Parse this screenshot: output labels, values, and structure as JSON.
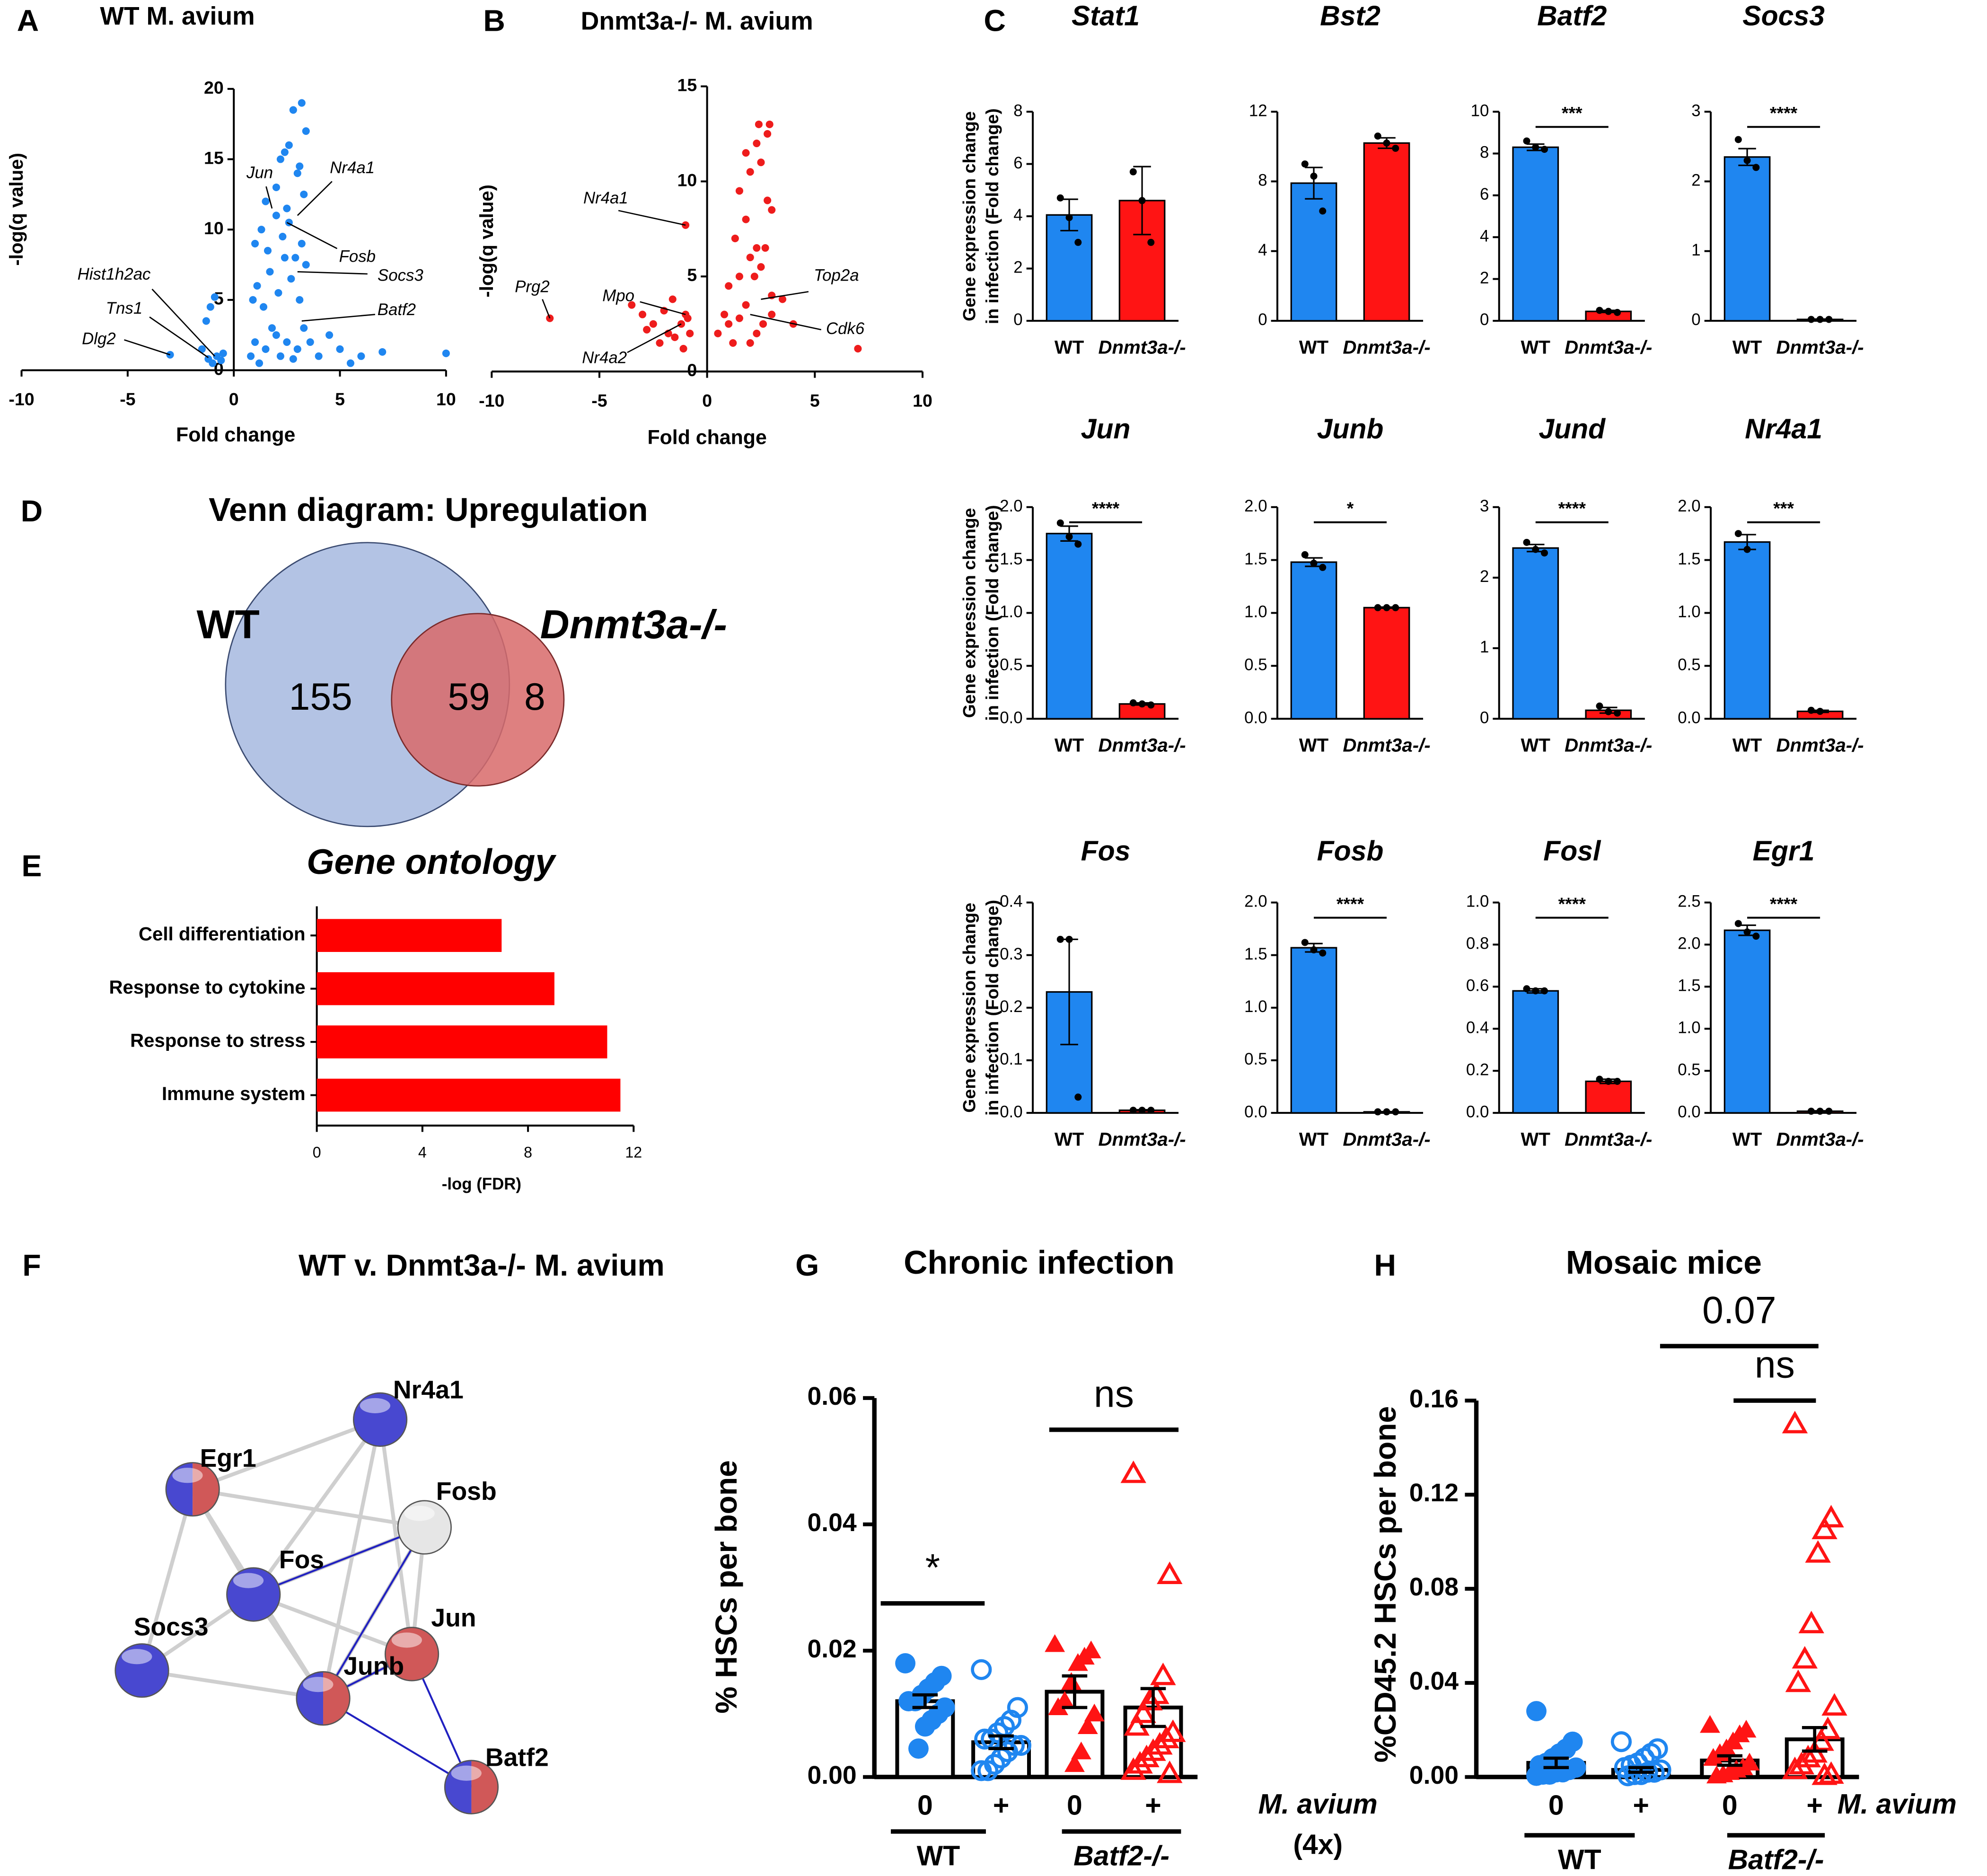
{
  "chart_data": [
    {
      "type": "scatter",
      "panel": "A",
      "title": "WT M. avium",
      "xlabel": "Fold change",
      "ylabel": "-log(q value)",
      "color": "#1f86f0",
      "xlim": [
        -10,
        10
      ],
      "xticks": [
        -10,
        -5,
        0,
        5,
        10
      ],
      "ylim": [
        0,
        20
      ],
      "yticks": [
        0,
        5,
        10,
        15,
        20
      ],
      "x": [
        -3,
        -1.5,
        -1.2,
        -1,
        -0.8,
        -0.6,
        -0.5,
        -1.1,
        -0.9,
        -1.3,
        0.8,
        1,
        1.2,
        1.5,
        1.8,
        2,
        2.2,
        2.5,
        2.8,
        3,
        3.3,
        3.6,
        4,
        4.5,
        5,
        5.5,
        6,
        7,
        10,
        0.9,
        1.1,
        1.4,
        1.7,
        2.1,
        2.4,
        2.7,
        3.1,
        3.4,
        1,
        1.3,
        1.6,
        2,
        2.3,
        2.6,
        2.9,
        3.2,
        1.5,
        2,
        2.5,
        3,
        3.3,
        2.2,
        2.6,
        3.1,
        3.4,
        2.8,
        3.2,
        2.4
      ],
      "values": [
        1.1,
        1.5,
        0.8,
        0.5,
        1,
        0.7,
        1.2,
        4.5,
        5.2,
        3.5,
        1,
        2,
        0.5,
        1.5,
        3,
        2.5,
        1,
        2,
        0.8,
        1.5,
        3,
        2,
        1,
        2.5,
        1.5,
        0.5,
        1,
        1.3,
        1.2,
        5,
        6,
        4.5,
        7,
        5.5,
        8,
        6.5,
        5,
        7.5,
        9,
        10,
        8.5,
        11,
        9.5,
        10.5,
        8,
        9,
        12,
        13,
        11.5,
        14,
        12.5,
        15,
        16,
        14.5,
        17,
        18.5,
        19,
        15.5
      ],
      "annotations": [
        {
          "text": "Jun",
          "x": 1.8,
          "y": 11.5
        },
        {
          "text": "Nr4a1",
          "x": 3,
          "y": 11
        },
        {
          "text": "Fosb",
          "x": 2.5,
          "y": 10.5
        },
        {
          "text": "Socs3",
          "x": 3,
          "y": 7
        },
        {
          "text": "Batf2",
          "x": 3.2,
          "y": 3.5
        },
        {
          "text": "Hist1h2ac",
          "x": -0.9,
          "y": 1
        },
        {
          "text": "Tns1",
          "x": -1.2,
          "y": 0.9
        },
        {
          "text": "Dlg2",
          "x": -3,
          "y": 1.1
        }
      ]
    },
    {
      "type": "scatter",
      "panel": "B",
      "title": "Dnmt3a-/- M. avium",
      "xlabel": "Fold change",
      "ylabel": "-log(q value)",
      "color": "#ee1c1c",
      "xlim": [
        -10,
        10
      ],
      "xticks": [
        -10,
        -5,
        0,
        5,
        10
      ],
      "ylim": [
        0,
        15
      ],
      "yticks": [
        0,
        5,
        10,
        15
      ],
      "x": [
        -7.3,
        -3.5,
        -3,
        -2.5,
        -2,
        -1.8,
        -1.5,
        -1.2,
        -1,
        -0.8,
        -2.8,
        -2.2,
        -1.6,
        -1.1,
        -0.9,
        0.5,
        0.8,
        1,
        1.2,
        1.5,
        1.8,
        2,
        2.3,
        2.6,
        3,
        3.5,
        4,
        7,
        1,
        1.5,
        2,
        2.5,
        3,
        1.3,
        1.8,
        2.3,
        2.8,
        1.5,
        2,
        2.5,
        3,
        1.8,
        2.3,
        2.8,
        2.4,
        2.9,
        2.2,
        2.7,
        -1
      ],
      "values": [
        2.8,
        3.5,
        3,
        2.5,
        3.2,
        2,
        1.8,
        2.5,
        3,
        2,
        2.2,
        1.5,
        3.8,
        1.2,
        2.8,
        2,
        3,
        2.5,
        1.5,
        2.8,
        3.5,
        1.5,
        2,
        2.5,
        3,
        3.8,
        2.5,
        1.2,
        4.5,
        5,
        6,
        5.5,
        4,
        7,
        8,
        6.5,
        9,
        9.5,
        10.5,
        11,
        8.5,
        11.5,
        12,
        12.5,
        13,
        13,
        5,
        6.5,
        7.7
      ],
      "annotations": [
        {
          "text": "Nr4a1",
          "x": -1,
          "y": 7.7
        },
        {
          "text": "Prg2",
          "x": -7.3,
          "y": 2.8
        },
        {
          "text": "Mpo",
          "x": -1,
          "y": 3
        },
        {
          "text": "Nr4a2",
          "x": -1.2,
          "y": 2.5
        },
        {
          "text": "Top2a",
          "x": 2.5,
          "y": 3.8
        },
        {
          "text": "Cdk6",
          "x": 2,
          "y": 3
        }
      ]
    },
    {
      "type": "bar",
      "panel": "C",
      "title": "Stat1",
      "ylabel": [
        "Gene expression change",
        "in infection (Fold change)"
      ],
      "categories": [
        "WT",
        "Dnmt3a-/-"
      ],
      "colors": [
        "#1f86f0",
        "#ff1414"
      ],
      "ylim": [
        0,
        8
      ],
      "yticks": [
        0,
        2,
        4,
        6,
        8
      ],
      "values": [
        4.05,
        4.6
      ],
      "errors": [
        0.6,
        1.3
      ],
      "points": [
        [
          4.7,
          3.95,
          3.0
        ],
        [
          5.7,
          4.6,
          3.0
        ]
      ]
    },
    {
      "type": "bar",
      "title": "Bst2",
      "categories": [
        "WT",
        "Dnmt3a-/-"
      ],
      "colors": [
        "#1f86f0",
        "#ff1414"
      ],
      "ylim": [
        0,
        12
      ],
      "yticks": [
        0,
        4,
        8,
        12
      ],
      "values": [
        7.9,
        10.2
      ],
      "errors": [
        0.9,
        0.3
      ],
      "points": [
        [
          9.0,
          8.3,
          6.3
        ],
        [
          10.6,
          10.2,
          9.9
        ]
      ]
    },
    {
      "type": "bar",
      "title": "Batf2",
      "categories": [
        "WT",
        "Dnmt3a-/-"
      ],
      "colors": [
        "#1f86f0",
        "#ff1414"
      ],
      "ylim": [
        0,
        10
      ],
      "yticks": [
        0,
        2,
        4,
        6,
        8,
        10
      ],
      "values": [
        8.3,
        0.45
      ],
      "errors": [
        0.15,
        0.05
      ],
      "points": [
        [
          8.6,
          8.3,
          8.2
        ],
        [
          0.5,
          0.45,
          0.4
        ]
      ],
      "significance": "***"
    },
    {
      "type": "bar",
      "title": "Socs3",
      "categories": [
        "WT",
        "Dnmt3a-/-"
      ],
      "colors": [
        "#1f86f0",
        "#ff1414"
      ],
      "ylim": [
        0,
        3
      ],
      "yticks": [
        0,
        1,
        2,
        3
      ],
      "values": [
        2.35,
        0.02
      ],
      "errors": [
        0.12,
        0.005
      ],
      "points": [
        [
          2.6,
          2.3,
          2.2
        ],
        [
          0.02,
          0.02,
          0.02
        ]
      ],
      "significance": "****"
    },
    {
      "type": "bar",
      "title": "Jun",
      "ylabel": [
        "Gene expression change",
        "in infection (Fold change)"
      ],
      "categories": [
        "WT",
        "Dnmt3a-/-"
      ],
      "colors": [
        "#1f86f0",
        "#ff1414"
      ],
      "ylim": [
        0,
        2
      ],
      "yticks": [
        {
          "value": 0,
          "label": "0.0"
        },
        0.5,
        {
          "value": 1,
          "label": "1.0"
        },
        1.5,
        {
          "value": 2,
          "label": "2.0"
        }
      ],
      "values": [
        1.75,
        0.14
      ],
      "errors": [
        0.07,
        0.01
      ],
      "points": [
        [
          1.85,
          1.72,
          1.65
        ],
        [
          0.15,
          0.14,
          0.13
        ]
      ],
      "significance": "****"
    },
    {
      "type": "bar",
      "title": "Junb",
      "categories": [
        "WT",
        "Dnmt3a-/-"
      ],
      "colors": [
        "#1f86f0",
        "#ff1414"
      ],
      "ylim": [
        0,
        2
      ],
      "yticks": [
        {
          "value": 0,
          "label": "0.0"
        },
        0.5,
        {
          "value": 1,
          "label": "1.0"
        },
        1.5,
        {
          "value": 2,
          "label": "2.0"
        }
      ],
      "values": [
        1.48,
        1.05
      ],
      "errors": [
        0.04,
        0.005
      ],
      "points": [
        [
          1.55,
          1.47,
          1.43
        ],
        [
          1.05,
          1.05,
          1.05
        ]
      ],
      "significance": "*"
    },
    {
      "type": "bar",
      "title": "Jund",
      "categories": [
        "WT",
        "Dnmt3a-/-"
      ],
      "colors": [
        "#1f86f0",
        "#ff1414"
      ],
      "ylim": [
        0,
        3
      ],
      "yticks": [
        0,
        1,
        2,
        3
      ],
      "values": [
        2.42,
        0.12
      ],
      "errors": [
        0.05,
        0.04
      ],
      "points": [
        [
          2.5,
          2.4,
          2.35
        ],
        [
          0.18,
          0.1,
          0.08
        ]
      ],
      "significance": "****"
    },
    {
      "type": "bar",
      "title": "Nr4a1",
      "categories": [
        "WT",
        "Dnmt3a-/-"
      ],
      "colors": [
        "#1f86f0",
        "#ff1414"
      ],
      "ylim": [
        0,
        2
      ],
      "yticks": [
        {
          "value": 0,
          "label": "0.0"
        },
        0.5,
        {
          "value": 1,
          "label": "1.0"
        },
        1.5,
        {
          "value": 2,
          "label": "2.0"
        }
      ],
      "values": [
        1.67,
        0.07
      ],
      "errors": [
        0.07,
        0.01
      ],
      "points": [
        [
          1.75,
          1.6
        ],
        [
          0.08,
          0.07
        ]
      ],
      "significance": "***"
    },
    {
      "type": "bar",
      "title": "Fos",
      "ylabel": [
        "Gene expression change",
        "in infection (Fold change)"
      ],
      "categories": [
        "WT",
        "Dnmt3a-/-"
      ],
      "colors": [
        "#1f86f0",
        "#ff1414"
      ],
      "ylim": [
        0,
        0.4
      ],
      "yticks": [
        {
          "value": 0,
          "label": "0.0"
        },
        0.1,
        0.2,
        0.3,
        0.4
      ],
      "values": [
        0.23,
        0.005
      ],
      "errors": [
        0.1,
        0.001
      ],
      "points": [
        [
          0.33,
          0.33,
          0.03
        ],
        [
          0.005,
          0.005,
          0.005
        ]
      ]
    },
    {
      "type": "bar",
      "title": "Fosb",
      "categories": [
        "WT",
        "Dnmt3a-/-"
      ],
      "colors": [
        "#1f86f0",
        "#ff1414"
      ],
      "ylim": [
        0,
        2
      ],
      "yticks": [
        {
          "value": 0,
          "label": "0.0"
        },
        0.5,
        {
          "value": 1,
          "label": "1.0"
        },
        1.5,
        {
          "value": 2,
          "label": "2.0"
        }
      ],
      "values": [
        1.57,
        0.01
      ],
      "errors": [
        0.04,
        0.002
      ],
      "points": [
        [
          1.62,
          1.55,
          1.52
        ],
        [
          0.01,
          0.01,
          0.01
        ]
      ],
      "significance": "****"
    },
    {
      "type": "bar",
      "title": "Fosl",
      "categories": [
        "WT",
        "Dnmt3a-/-"
      ],
      "colors": [
        "#1f86f0",
        "#ff1414"
      ],
      "ylim": [
        0,
        1
      ],
      "yticks": [
        {
          "value": 0,
          "label": "0.0"
        },
        0.2,
        0.4,
        0.6,
        0.8,
        {
          "value": 1,
          "label": "1.0"
        }
      ],
      "values": [
        0.58,
        0.15
      ],
      "errors": [
        0.01,
        0.01
      ],
      "points": [
        [
          0.59,
          0.58,
          0.58
        ],
        [
          0.16,
          0.15,
          0.15
        ]
      ],
      "significance": "****"
    },
    {
      "type": "bar",
      "title": "Egr1",
      "categories": [
        "WT",
        "Dnmt3a-/-"
      ],
      "colors": [
        "#1f86f0",
        "#ff1414"
      ],
      "ylim": [
        0,
        2.5
      ],
      "yticks": [
        {
          "value": 0,
          "label": "0.0"
        },
        0.5,
        {
          "value": 1,
          "label": "1.0"
        },
        1.5,
        {
          "value": 2,
          "label": "2.0"
        },
        2.5
      ],
      "values": [
        2.17,
        0.02
      ],
      "errors": [
        0.06,
        0.005
      ],
      "points": [
        [
          2.25,
          2.15,
          2.1
        ],
        [
          0.02,
          0.02,
          0.02
        ]
      ],
      "significance": "****"
    },
    {
      "type": "venn",
      "panel": "D",
      "title": "Venn diagram: Upregulation",
      "sets": [
        {
          "name": "WT",
          "color": "#b3c3e4"
        },
        {
          "name": "Dnmt3a-/-",
          "color": "#d86a6a"
        }
      ],
      "values": [
        155,
        59,
        8
      ]
    },
    {
      "type": "hbar",
      "panel": "E",
      "title": "Gene ontology",
      "xlabel": "-log (FDR)",
      "color": "#ff0000",
      "categories": [
        "Cell differentiation",
        "Response to cytokine",
        "Response to stress",
        "Immune system"
      ],
      "values": [
        7,
        9,
        11,
        11.5
      ],
      "xlim": [
        0,
        12
      ],
      "xticks": [
        0,
        4,
        8,
        12
      ]
    },
    {
      "type": "network",
      "panel": "F",
      "title": "WT v. Dnmt3a-/- M. avium",
      "nodes": [
        {
          "label": "Nr4a1",
          "color": "#4848d0"
        },
        {
          "label": "Egr1",
          "color": [
            "#4848d0",
            "#d05858"
          ]
        },
        {
          "label": "Fosb",
          "color": "#e6e6e6"
        },
        {
          "label": "Fos",
          "color": "#4848d0"
        },
        {
          "label": "Jun",
          "color": "#d05858"
        },
        {
          "label": "Socs3",
          "color": "#4848d0"
        },
        {
          "label": "Junb",
          "color": [
            "#4848d0",
            "#d05858"
          ]
        },
        {
          "label": "Batf2",
          "color": [
            "#4848d0",
            "#d05858"
          ]
        }
      ]
    },
    {
      "type": "bar-scatter",
      "panel": "G",
      "title": "Chronic infection",
      "ylabel": "% HSCs per bone",
      "xlabel": [
        "M. avium",
        "(4x)"
      ],
      "categories": [
        "0",
        "+",
        "0",
        "+"
      ],
      "groups": [
        "WT",
        "Batf2-/-"
      ],
      "colors": [
        "#1f86f0",
        "#1f86f0",
        "#ff1414",
        "#ff1414"
      ],
      "markers": [
        "circle",
        "circle-open",
        "triangle",
        "triangle-open"
      ],
      "ylim": [
        0,
        0.06
      ],
      "yticks": [
        {
          "value": 0,
          "label": "0.00"
        },
        0.02,
        0.04,
        0.06
      ],
      "values": [
        0.012,
        0.0055,
        0.0135,
        0.011
      ],
      "errors": [
        0.001,
        0.001,
        0.0025,
        0.003
      ],
      "points": [
        [
          0.018,
          0.016,
          0.015,
          0.014,
          0.013,
          0.012,
          0.012,
          0.011,
          0.01,
          0.009,
          0.008,
          0.0045
        ],
        [
          0.017,
          0.011,
          0.009,
          0.008,
          0.007,
          0.006,
          0.006,
          0.005,
          0.005,
          0.004,
          0.003,
          0.002,
          0.001,
          0.001
        ],
        [
          0.021,
          0.02,
          0.019,
          0.018,
          0.015,
          0.012,
          0.011,
          0.01,
          0.008,
          0.004,
          0.002
        ],
        [
          0.048,
          0.032,
          0.016,
          0.013,
          0.012,
          0.01,
          0.008,
          0.007,
          0.006,
          0.005,
          0.004,
          0.003,
          0.002,
          0.001,
          0.0005
        ]
      ],
      "significance": [
        "*",
        "ns"
      ]
    },
    {
      "type": "bar-scatter",
      "panel": "H",
      "title": "Mosaic mice",
      "ylabel": "%CD45.2 HSCs per bone",
      "xlabel": [
        "M. avium"
      ],
      "categories": [
        "0",
        "+",
        "0",
        "+"
      ],
      "groups": [
        "WT",
        "Batf2-/-"
      ],
      "colors": [
        "#1f86f0",
        "#1f86f0",
        "#ff1414",
        "#ff1414"
      ],
      "markers": [
        "circle",
        "circle-open",
        "triangle",
        "triangle-open"
      ],
      "ylim": [
        0,
        0.16
      ],
      "yticks": [
        {
          "value": 0,
          "label": "0.00"
        },
        0.04,
        0.08,
        0.12,
        0.16
      ],
      "values": [
        0.006,
        0.003,
        0.007,
        0.016
      ],
      "errors": [
        0.002,
        0.001,
        0.002,
        0.005
      ],
      "points": [
        [
          0.028,
          0.015,
          0.012,
          0.01,
          0.008,
          0.006,
          0.005,
          0.004,
          0.003,
          0.002,
          0.002,
          0.001,
          0.001,
          0.0005
        ],
        [
          0.015,
          0.012,
          0.01,
          0.008,
          0.006,
          0.005,
          0.004,
          0.003,
          0.002,
          0.002,
          0.001,
          0.001,
          0.0005
        ],
        [
          0.022,
          0.02,
          0.018,
          0.015,
          0.012,
          0.01,
          0.008,
          0.006,
          0.004,
          0.003,
          0.002,
          0.001,
          0.0005
        ],
        [
          0.15,
          0.11,
          0.105,
          0.095,
          0.065,
          0.05,
          0.04,
          0.03,
          0.02,
          0.015,
          0.01,
          0.008,
          0.005,
          0.003,
          0.001,
          0.0005
        ]
      ],
      "significance": [
        "ns",
        "0.07"
      ]
    }
  ]
}
